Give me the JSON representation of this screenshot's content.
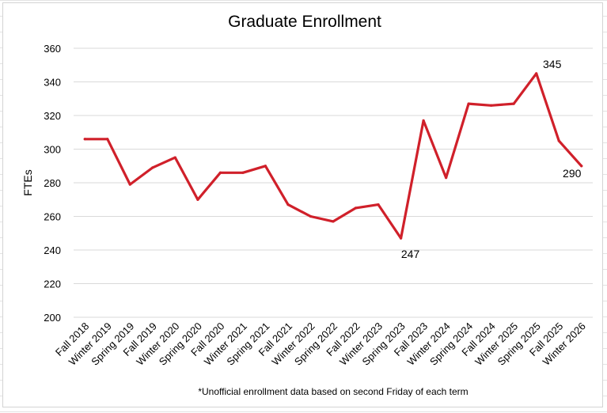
{
  "chart_data": {
    "type": "line",
    "title": "Graduate Enrollment",
    "xlabel": "",
    "ylabel": "FTEs",
    "ylim": [
      200,
      360
    ],
    "yticks": [
      200,
      220,
      240,
      260,
      280,
      300,
      320,
      340,
      360
    ],
    "grid": true,
    "legend": "none",
    "color": "#d0202a",
    "categories": [
      "Fall 2018",
      "Winter 2019",
      "Spring 2019",
      "Fall 2019",
      "Winter 2020",
      "Spring 2020",
      "Fall 2020",
      "Winter 2021",
      "Spring 2021",
      "Fall 2021",
      "Winter 2022",
      "Spring 2022",
      "Fall 2022",
      "Winter 2023",
      "Spring 2023",
      "Fall 2023",
      "Winter 2024",
      "Spring 2024",
      "Fall 2024",
      "Winter 2025",
      "Spring 2025",
      "Fall 2025",
      "Winter 2026"
    ],
    "series": [
      {
        "values": [
          306,
          306,
          279,
          289,
          295,
          270,
          286,
          286,
          290,
          267,
          260,
          257,
          265,
          267,
          247,
          317,
          283,
          327,
          326,
          327,
          345,
          305,
          290
        ]
      }
    ],
    "data_labels": [
      {
        "index": 14,
        "text": "247"
      },
      {
        "index": 20,
        "text": "345"
      },
      {
        "index": 22,
        "text": "290"
      }
    ],
    "footnote": "*Unofficial enrollment data based on second Friday of each term"
  }
}
